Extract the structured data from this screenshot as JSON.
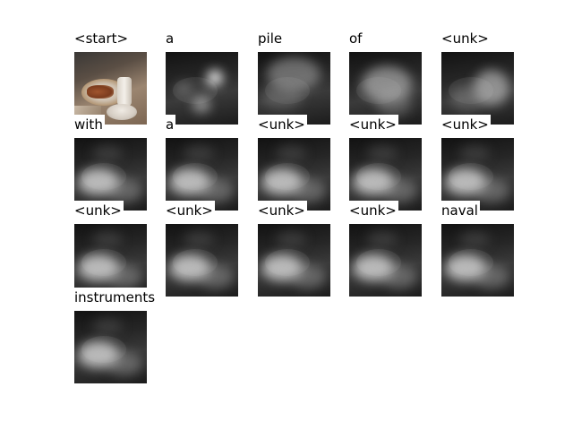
{
  "caption_words": [
    {
      "word": "<start>",
      "attention": "source-image"
    },
    {
      "word": "a",
      "attention": "spots"
    },
    {
      "word": "pile",
      "attention": "diffuse-top"
    },
    {
      "word": "of",
      "attention": "diffuse-center"
    },
    {
      "word": "<unk>",
      "attention": "diffuse-right"
    },
    {
      "word": "with",
      "attention": "lower-left"
    },
    {
      "word": "a",
      "attention": "lower-left"
    },
    {
      "word": "<unk>",
      "attention": "lower-left"
    },
    {
      "word": "<unk>",
      "attention": "lower-left"
    },
    {
      "word": "<unk>",
      "attention": "lower-left"
    },
    {
      "word": "<unk>",
      "attention": "lower-left"
    },
    {
      "word": "<unk>",
      "attention": "lower-left"
    },
    {
      "word": "<unk>",
      "attention": "lower-left"
    },
    {
      "word": "<unk>",
      "attention": "lower-left"
    },
    {
      "word": "naval",
      "attention": "lower-left"
    },
    {
      "word": "instruments",
      "attention": "lower-left"
    }
  ]
}
